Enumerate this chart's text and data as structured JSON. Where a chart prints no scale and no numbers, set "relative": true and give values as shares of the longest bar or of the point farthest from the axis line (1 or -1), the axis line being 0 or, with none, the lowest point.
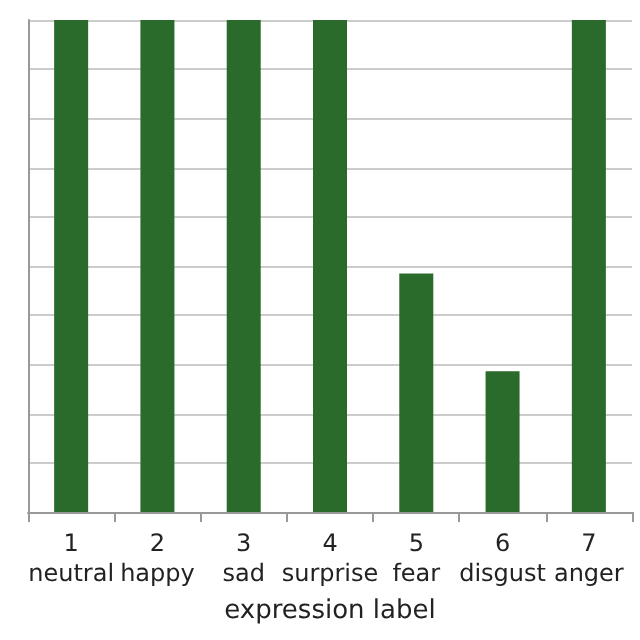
{
  "chart_data": {
    "type": "bar",
    "xlabel": "expression label",
    "categories": [
      "1\nneutral",
      "2\nhappy",
      "3\nsad",
      "4\nsurprise",
      "5\nfear",
      "6\ndisgust",
      "7\nanger"
    ],
    "values": [
      1,
      1,
      1,
      1,
      0.485,
      0.286,
      1
    ],
    "color": "#2a6a2a",
    "relative": true,
    "grid": "y"
  }
}
